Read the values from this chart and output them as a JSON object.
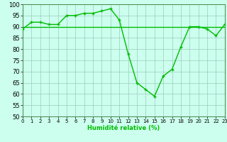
{
  "x": [
    0,
    1,
    2,
    3,
    4,
    5,
    6,
    7,
    8,
    9,
    10,
    11,
    12,
    13,
    14,
    15,
    16,
    17,
    18,
    19,
    20,
    21,
    22,
    23
  ],
  "y": [
    89,
    92,
    92,
    91,
    91,
    95,
    95,
    96,
    96,
    97,
    98,
    93,
    78,
    65,
    62,
    59,
    68,
    71,
    81,
    90,
    90,
    89,
    86,
    91
  ],
  "avg_y": 90,
  "line_color": "#00bb00",
  "avg_color": "#00bb00",
  "bg_color": "#ccffee",
  "grid_color": "#99ccbb",
  "xlabel": "Humidité relative (%)",
  "ylim": [
    50,
    100
  ],
  "xlim": [
    0,
    23
  ],
  "yticks": [
    50,
    55,
    60,
    65,
    70,
    75,
    80,
    85,
    90,
    95,
    100
  ],
  "xticks": [
    0,
    1,
    2,
    3,
    4,
    5,
    6,
    7,
    8,
    9,
    10,
    11,
    12,
    13,
    14,
    15,
    16,
    17,
    18,
    19,
    20,
    21,
    22,
    23
  ],
  "ytick_fontsize": 6,
  "xtick_fontsize": 5,
  "xlabel_fontsize": 6,
  "linewidth": 1.0,
  "marker": "+",
  "markersize": 3.5,
  "markeredgewidth": 1.0
}
